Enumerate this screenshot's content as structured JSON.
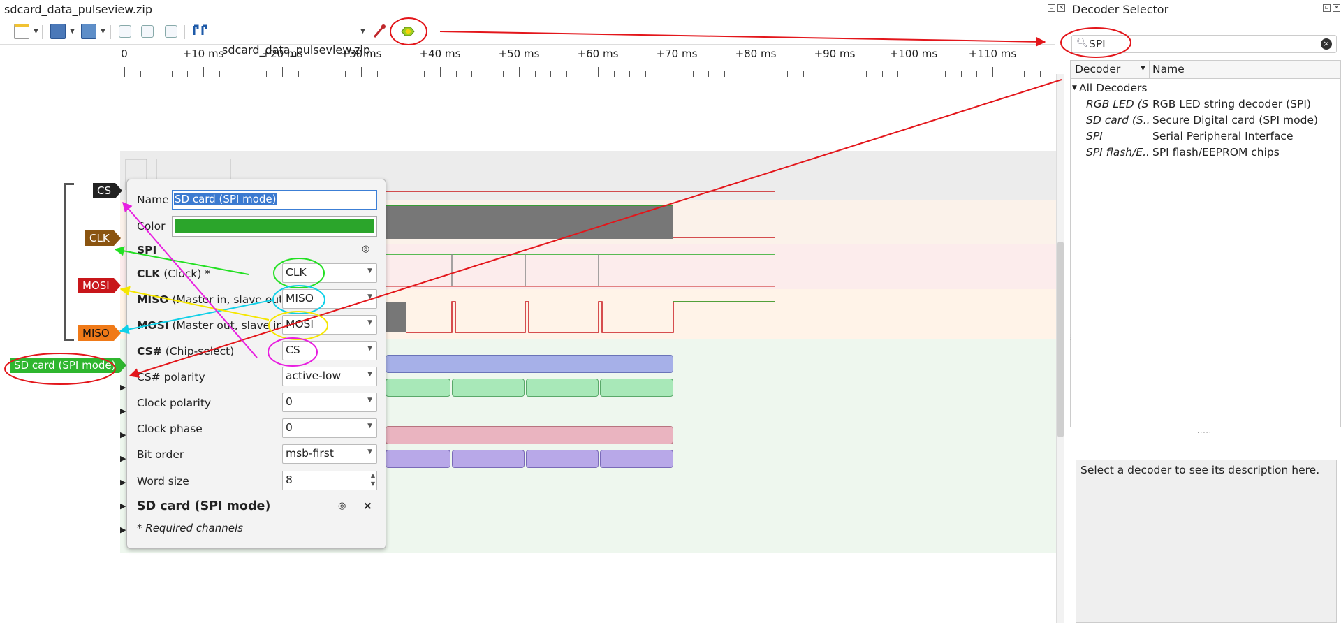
{
  "window": {
    "title": "sdcard_data_pulseview.zip",
    "session_selector": "sdcard_data_pulseview.zip"
  },
  "toolbar": {
    "icons": [
      "new-session-icon",
      "open-icon",
      "save-icon",
      "zoom-in-icon",
      "zoom-out-icon",
      "zoom-fit-icon",
      "cursor-icon",
      "probe-icon",
      "add-decoder-icon"
    ]
  },
  "ruler": {
    "labels": [
      "0",
      "+10 ms",
      "+20 ms",
      "+30 ms",
      "+40 ms",
      "+50 ms",
      "+60 ms",
      "+70 ms",
      "+80 ms",
      "+90 ms",
      "+100 ms",
      "+110 ms"
    ]
  },
  "signals": [
    {
      "name": "CS",
      "color": "#222222"
    },
    {
      "name": "CLK",
      "color": "#8a5410"
    },
    {
      "name": "MOSI",
      "color": "#c8161a"
    },
    {
      "name": "MISO",
      "color": "#f07a18"
    }
  ],
  "decoder_trace": {
    "name": "SD card (SPI mode)",
    "color": "#2fb62f"
  },
  "popup": {
    "name_label": "Name",
    "name_value": "SD card (SPI mode)",
    "color_label": "Color",
    "color_value": "#2ba52b",
    "section_spi": "SPI",
    "clk": {
      "bold": "CLK",
      "rest": " (Clock) *",
      "value": "CLK"
    },
    "miso": {
      "bold": "MISO",
      "rest": " (Master in, slave out)",
      "value": "MISO"
    },
    "mosi": {
      "bold": "MOSI",
      "rest": " (Master out, slave in)",
      "value": "MOSI"
    },
    "cs": {
      "bold": "CS#",
      "rest": " (Chip-select)",
      "value": "CS"
    },
    "cs_polarity": {
      "label": "CS# polarity",
      "value": "active-low"
    },
    "clock_polarity": {
      "label": "Clock polarity",
      "value": "0"
    },
    "clock_phase": {
      "label": "Clock phase",
      "value": "0"
    },
    "bit_order": {
      "label": "Bit order",
      "value": "msb-first"
    },
    "word_size": {
      "label": "Word size",
      "value": "8"
    },
    "section_sd": "SD card (SPI mode)",
    "footer": "* Required channels"
  },
  "decoder_selector": {
    "title": "Decoder Selector",
    "search_value": "SPI",
    "col_decoder": "Decoder",
    "col_name": "Name",
    "root": "All Decoders",
    "rows": [
      {
        "id": "RGB LED (S...",
        "name": "RGB LED string decoder (SPI)"
      },
      {
        "id": "SD card (S...",
        "name": "Secure Digital card (SPI mode)"
      },
      {
        "id": "SPI",
        "name": "Serial Peripheral Interface"
      },
      {
        "id": "SPI flash/E...",
        "name": "SPI flash/EEPROM chips"
      }
    ],
    "description": "Select a decoder to see its description here."
  }
}
